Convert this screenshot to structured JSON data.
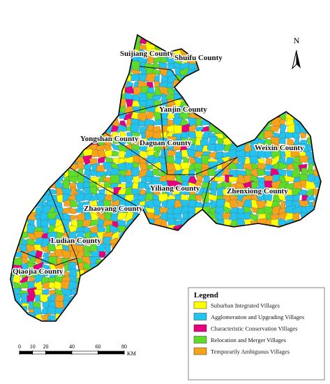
{
  "map": {
    "counties": [
      "Suijiang County",
      "Shuifu County",
      "Yanjin County",
      "Yongshan County",
      "Daguan County",
      "Weixin County",
      "Yiliang County",
      "Zhenxiong County",
      "Zhaoyang County",
      "Ludian County",
      "Qiaojia County"
    ],
    "north": "N",
    "legend": {
      "title": "Legend",
      "items": [
        {
          "label": "Suburban Integrated Villages",
          "color": "#ffff00"
        },
        {
          "label": "Agglomeration and Upgrading Villages",
          "color": "#22c3ee"
        },
        {
          "label": "Characteristic Conservation Villages",
          "color": "#e4007f"
        },
        {
          "label": "Relocation and Merger Villages",
          "color": "#5fdc2a"
        },
        {
          "label": "Temporarily Ambiguous Villages",
          "color": "#f7a21b"
        }
      ]
    },
    "scale": {
      "ticks": [
        0,
        10,
        20,
        40,
        60,
        80
      ],
      "unit": "KM"
    }
  }
}
